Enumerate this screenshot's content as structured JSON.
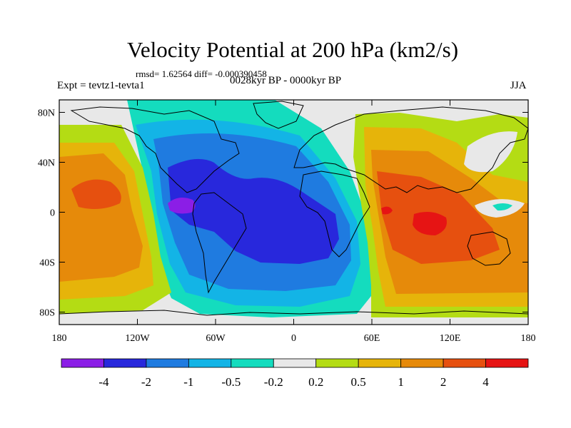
{
  "title": "Velocity Potential at 200 hPa (km2/s)",
  "stats": "rmsd= 1.62564 diff= -0.000390458",
  "experiment": "Expt = tevtz1-tevta1",
  "period": "0028kyr BP - 0000kyr BP",
  "season": "JJA",
  "map": {
    "projection": "cylindrical-equidistant",
    "lon_range": [
      -180,
      180
    ],
    "lat_range": [
      -90,
      90
    ],
    "lon_ticks": [
      {
        "value": -180,
        "label": "180"
      },
      {
        "value": -120,
        "label": "120W"
      },
      {
        "value": -60,
        "label": "60W"
      },
      {
        "value": 0,
        "label": "0"
      },
      {
        "value": 60,
        "label": "60E"
      },
      {
        "value": 120,
        "label": "120E"
      },
      {
        "value": 180,
        "label": "180"
      }
    ],
    "lat_ticks": [
      {
        "value": 80,
        "label": "80N"
      },
      {
        "value": 40,
        "label": "40N"
      },
      {
        "value": 0,
        "label": "0"
      },
      {
        "value": -40,
        "label": "40S"
      },
      {
        "value": -80,
        "label": "80S"
      }
    ]
  },
  "colorbar": {
    "colors": [
      "#8b1ee6",
      "#2828dc",
      "#1f7be0",
      "#13b4e6",
      "#14dcbe",
      "#e8e8e8",
      "#b4dc14",
      "#e6b40a",
      "#e68a0a",
      "#e6500f",
      "#e61414"
    ],
    "labels": [
      "-4",
      "-2",
      "-1",
      "-0.5",
      "-0.2",
      "0.2",
      "0.5",
      "1",
      "2",
      "4"
    ]
  }
}
